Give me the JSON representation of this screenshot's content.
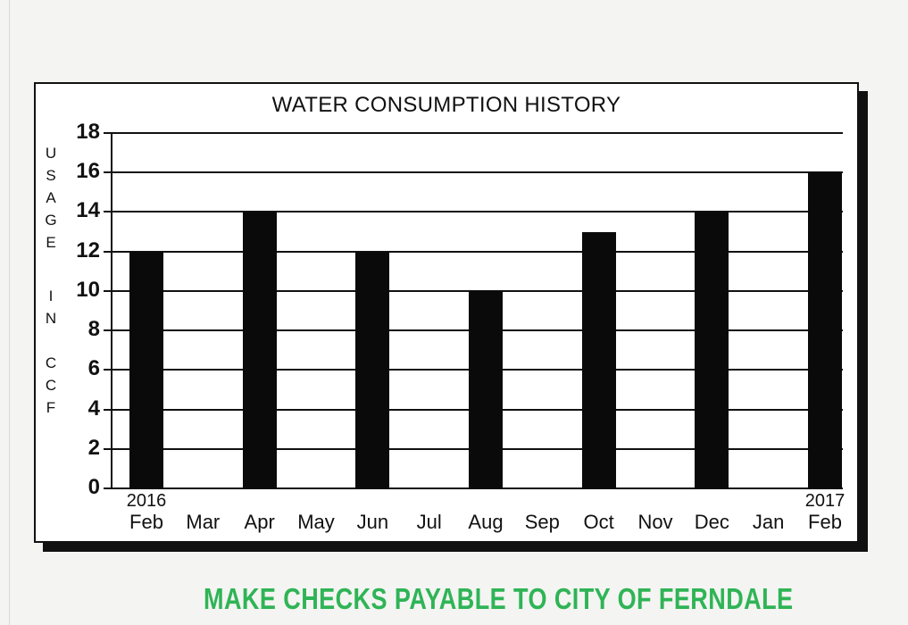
{
  "chart_data": {
    "type": "bar",
    "title": "WATER CONSUMPTION HISTORY",
    "xlabel": "",
    "ylabel": "USAGE IN CCF",
    "ylim": [
      0,
      18
    ],
    "yticks": [
      0,
      2,
      4,
      6,
      8,
      10,
      12,
      14,
      16,
      18
    ],
    "grid": true,
    "categories": [
      "Feb",
      "Mar",
      "Apr",
      "May",
      "Jun",
      "Jul",
      "Aug",
      "Sep",
      "Oct",
      "Nov",
      "Dec",
      "Jan",
      "Feb"
    ],
    "year_labels": [
      {
        "index": 0,
        "label": "2016"
      },
      {
        "index": 12,
        "label": "2017"
      }
    ],
    "values": [
      12,
      null,
      14,
      null,
      12,
      null,
      10,
      null,
      13,
      null,
      14,
      null,
      16
    ],
    "bar_color": "#0a0a0a"
  },
  "ylabel_letters": [
    "U",
    "S",
    "A",
    "G",
    "E",
    "",
    "I",
    "N",
    "",
    "C",
    "C",
    "F"
  ],
  "footer": {
    "note": "MAKE CHECKS PAYABLE TO CITY OF FERNDALE",
    "color": "#2fb456"
  }
}
